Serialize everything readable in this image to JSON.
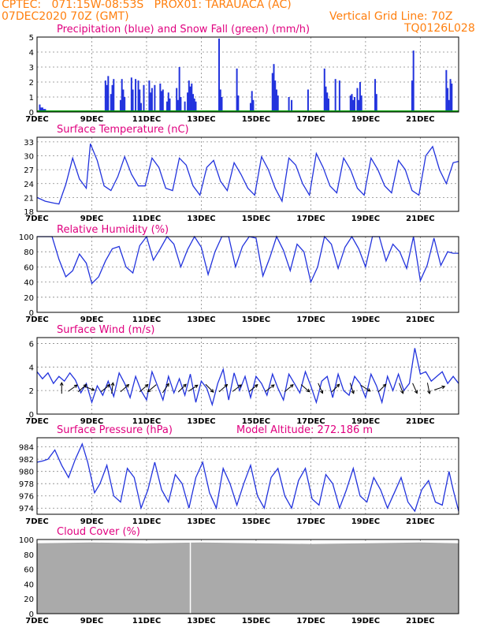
{
  "header": {
    "line1_left": "CPTEC:   071:15W-08:53S   PROX01: TARAUACA (AC)",
    "line2_left": "07DEC2020 70Z (GMT)",
    "line2_right": "Vertical Grid Line: 70Z",
    "line3_right": "TQ0126L028"
  },
  "colors": {
    "header": "#ff7f0e",
    "title": "#e0007f",
    "line": "#2233dd",
    "snow": "#00a000",
    "cloud": "#aaaaaa",
    "arrow": "#000000"
  },
  "x_axis": {
    "ticks": [
      {
        "label": "7DEC",
        "day": 7
      },
      {
        "label": "9DEC",
        "day": 9
      },
      {
        "label": "11DEC",
        "day": 11
      },
      {
        "label": "13DEC",
        "day": 13
      },
      {
        "label": "15DEC",
        "day": 15
      },
      {
        "label": "17DEC",
        "day": 17
      },
      {
        "label": "19DEC",
        "day": 19
      },
      {
        "label": "21DEC",
        "day": 21
      }
    ],
    "range": [
      7,
      22.4
    ]
  },
  "chart_data": [
    {
      "id": "precip",
      "type": "bar",
      "title": "Precipitation (blue) and Snow Fall (green) (mm/h)",
      "ylim": [
        0,
        5
      ],
      "yticks": [
        0,
        1,
        2,
        3,
        4,
        5
      ],
      "series": [
        {
          "name": "Precipitation",
          "x": [
            7.1,
            7.15,
            7.2,
            7.25,
            7.3,
            9.5,
            9.55,
            9.6,
            9.7,
            9.75,
            9.8,
            10.05,
            10.1,
            10.15,
            10.2,
            10.45,
            10.5,
            10.6,
            10.7,
            10.75,
            10.8,
            10.9,
            11.1,
            11.15,
            11.2,
            11.3,
            11.5,
            11.55,
            11.6,
            11.75,
            11.8,
            11.85,
            12.1,
            12.15,
            12.2,
            12.25,
            12.4,
            12.5,
            12.55,
            12.6,
            12.65,
            12.7,
            12.75,
            12.8,
            13.65,
            13.7,
            13.75,
            14.3,
            14.35,
            14.8,
            14.85,
            14.9,
            15.6,
            15.65,
            15.7,
            15.75,
            15.8,
            16.2,
            16.3,
            16.9,
            17.5,
            17.55,
            17.6,
            17.65,
            17.9,
            18.05,
            18.45,
            18.5,
            18.55,
            18.6,
            18.7,
            18.75,
            18.8,
            18.85,
            19.35,
            19.4,
            20.7,
            20.75,
            21.95,
            22.0,
            22.05,
            22.1,
            22.15
          ],
          "values": [
            0.5,
            0.3,
            0.3,
            0.2,
            0.2,
            2.1,
            1.8,
            2.4,
            1.2,
            1.8,
            2.2,
            0.8,
            2.2,
            1.5,
            1.0,
            2.3,
            1.5,
            2.2,
            2.1,
            1.5,
            0.6,
            1.8,
            2.1,
            1.3,
            1.6,
            1.8,
            1.9,
            1.4,
            1.5,
            0.7,
            1.3,
            0.9,
            1.6,
            0.8,
            3.0,
            1.0,
            0.7,
            1.3,
            2.1,
            1.7,
            1.9,
            1.2,
            0.9,
            0.7,
            4.9,
            1.5,
            1.0,
            2.9,
            1.1,
            0.6,
            1.4,
            0.8,
            2.6,
            3.2,
            2.1,
            1.5,
            1.1,
            1.0,
            0.8,
            1.5,
            2.9,
            1.7,
            1.3,
            0.9,
            2.2,
            2.1,
            1.1,
            1.2,
            0.8,
            1.0,
            1.6,
            0.8,
            2.0,
            1.1,
            2.2,
            1.2,
            2.1,
            4.1,
            2.8,
            1.6,
            0.8,
            2.2,
            1.9
          ]
        },
        {
          "name": "Snow Fall",
          "values": [
            0
          ]
        }
      ]
    },
    {
      "id": "temp",
      "type": "line",
      "title": "Surface Temperature (nC)",
      "ylim": [
        18,
        34
      ],
      "yticks": [
        18,
        21,
        24,
        27,
        30,
        33
      ],
      "series": [
        {
          "name": "Temperature",
          "x": [
            7.0,
            7.3,
            7.6,
            7.8,
            8.05,
            8.3,
            8.55,
            8.8,
            8.95,
            9.2,
            9.45,
            9.7,
            9.95,
            10.2,
            10.45,
            10.7,
            10.95,
            11.2,
            11.45,
            11.7,
            11.95,
            12.2,
            12.45,
            12.7,
            12.95,
            13.2,
            13.45,
            13.7,
            13.95,
            14.2,
            14.45,
            14.7,
            14.95,
            15.2,
            15.45,
            15.7,
            15.95,
            16.2,
            16.45,
            16.7,
            16.95,
            17.2,
            17.45,
            17.7,
            17.95,
            18.2,
            18.45,
            18.7,
            18.95,
            19.2,
            19.45,
            19.7,
            19.95,
            20.2,
            20.45,
            20.7,
            20.95,
            21.2,
            21.45,
            21.7,
            21.95,
            22.2,
            22.4
          ],
          "values": [
            21,
            20.2,
            19.8,
            19.6,
            23.8,
            29.5,
            25,
            23,
            32.6,
            29,
            23.5,
            22.5,
            25.5,
            29.8,
            26,
            23.5,
            23.5,
            29.5,
            27.5,
            23,
            22.5,
            29.5,
            28,
            23.5,
            21.5,
            27.5,
            29,
            24.5,
            22.5,
            28.5,
            26,
            23,
            21.5,
            29.8,
            27,
            23,
            20.2,
            29.5,
            28,
            24,
            21.5,
            30.5,
            27.5,
            23.5,
            22,
            29.5,
            27,
            23,
            21.5,
            29.5,
            27,
            23.5,
            22,
            29,
            27,
            22.5,
            21.5,
            30,
            32,
            27,
            24,
            28.5,
            28.8
          ]
        }
      ]
    },
    {
      "id": "rh",
      "type": "line",
      "title": "Relative Humidity (%)",
      "ylim": [
        0,
        100
      ],
      "yticks": [
        0,
        20,
        40,
        60,
        80,
        100
      ],
      "series": [
        {
          "name": "Relative Humidity",
          "x": [
            7.0,
            7.3,
            7.55,
            7.8,
            8.05,
            8.3,
            8.55,
            8.8,
            9.0,
            9.25,
            9.5,
            9.75,
            10.0,
            10.25,
            10.5,
            10.75,
            11.0,
            11.25,
            11.5,
            11.75,
            12.0,
            12.25,
            12.5,
            12.75,
            13.0,
            13.25,
            13.5,
            13.75,
            14.0,
            14.25,
            14.5,
            14.75,
            15.0,
            15.25,
            15.5,
            15.75,
            16.0,
            16.25,
            16.5,
            16.75,
            17.0,
            17.25,
            17.5,
            17.75,
            18.0,
            18.25,
            18.5,
            18.75,
            19.0,
            19.25,
            19.5,
            19.75,
            20.0,
            20.25,
            20.5,
            20.75,
            21.0,
            21.25,
            21.5,
            21.75,
            22.0,
            22.2,
            22.4
          ],
          "values": [
            100,
            100,
            100,
            70,
            47,
            55,
            77,
            65,
            38,
            47,
            68,
            84,
            87,
            60,
            52,
            88,
            100,
            69,
            84,
            100,
            90,
            60,
            83,
            100,
            86,
            50,
            80,
            100,
            100,
            60,
            87,
            100,
            98,
            48,
            72,
            100,
            82,
            55,
            90,
            80,
            40,
            60,
            100,
            90,
            58,
            86,
            100,
            84,
            60,
            100,
            100,
            68,
            90,
            80,
            58,
            100,
            42,
            62,
            98,
            62,
            80,
            78,
            78
          ]
        }
      ]
    },
    {
      "id": "wind",
      "type": "line",
      "title": "Surface Wind (m/s)",
      "ylim": [
        0,
        6.5
      ],
      "yticks": [
        0,
        2,
        4,
        6
      ],
      "series": [
        {
          "name": "Wind Speed",
          "x": [
            7.0,
            7.2,
            7.4,
            7.6,
            7.8,
            8.0,
            8.2,
            8.4,
            8.6,
            8.8,
            9.0,
            9.2,
            9.4,
            9.6,
            9.8,
            10.0,
            10.2,
            10.4,
            10.6,
            10.8,
            11.0,
            11.2,
            11.4,
            11.6,
            11.8,
            12.0,
            12.2,
            12.4,
            12.6,
            12.8,
            13.0,
            13.2,
            13.4,
            13.6,
            13.8,
            14.0,
            14.2,
            14.4,
            14.6,
            14.8,
            15.0,
            15.2,
            15.4,
            15.6,
            15.8,
            16.0,
            16.2,
            16.4,
            16.6,
            16.8,
            17.0,
            17.2,
            17.4,
            17.6,
            17.8,
            18.0,
            18.2,
            18.4,
            18.6,
            18.8,
            19.0,
            19.2,
            19.4,
            19.6,
            19.8,
            20.0,
            20.2,
            20.4,
            20.6,
            20.8,
            21.0,
            21.2,
            21.4,
            21.6,
            21.8,
            22.0,
            22.2,
            22.4
          ],
          "values": [
            3.6,
            3.0,
            3.5,
            2.6,
            3.2,
            2.8,
            3.5,
            2.9,
            1.8,
            2.6,
            1.0,
            2.4,
            1.6,
            2.8,
            1.5,
            3.5,
            2.6,
            1.4,
            3.2,
            2.0,
            1.2,
            3.6,
            2.4,
            1.2,
            3.2,
            1.8,
            3.0,
            1.6,
            3.4,
            1.0,
            2.8,
            2.2,
            0.8,
            2.6,
            3.8,
            1.2,
            3.5,
            2.0,
            3.2,
            1.4,
            3.2,
            2.6,
            1.6,
            3.4,
            2.2,
            1.2,
            3.4,
            2.6,
            1.8,
            3.6,
            2.4,
            1.0,
            2.8,
            3.2,
            1.4,
            3.4,
            2.0,
            1.6,
            3.2,
            2.6,
            1.4,
            3.4,
            2.4,
            1.0,
            3.2,
            2.0,
            3.4,
            2.0,
            2.6,
            5.6,
            3.4,
            3.6,
            2.8,
            3.2,
            3.6,
            2.6,
            3.2,
            2.6
          ]
        }
      ],
      "arrows": [
        {
          "day": 7.9,
          "u": 0,
          "v": 1
        },
        {
          "day": 8.3,
          "u": 0.7,
          "v": 0.5
        },
        {
          "day": 8.65,
          "u": 0.7,
          "v": 0.6
        },
        {
          "day": 8.9,
          "u": 0.8,
          "v": -0.3
        },
        {
          "day": 9.5,
          "u": 0.6,
          "v": 0.5
        },
        {
          "day": 9.75,
          "u": 0.1,
          "v": 0.8
        },
        {
          "day": 10.2,
          "u": 0.8,
          "v": 0.7
        },
        {
          "day": 10.9,
          "u": 0.9,
          "v": 0.8
        },
        {
          "day": 11.2,
          "u": -0.6,
          "v": -0.5
        },
        {
          "day": 11.7,
          "u": 0.4,
          "v": 0.6
        },
        {
          "day": 12.3,
          "u": 0.3,
          "v": 0.3
        },
        {
          "day": 12.7,
          "u": 0.9,
          "v": 0.6
        },
        {
          "day": 13.3,
          "u": 0.6,
          "v": -0.6
        },
        {
          "day": 13.8,
          "u": 0.9,
          "v": 0.8
        },
        {
          "day": 14.3,
          "u": 0.8,
          "v": 0.6
        },
        {
          "day": 14.9,
          "u": 1.2,
          "v": 1.0
        },
        {
          "day": 15.5,
          "u": 0.8,
          "v": 0.6
        },
        {
          "day": 16.2,
          "u": 0.6,
          "v": 0.5
        },
        {
          "day": 16.8,
          "u": 0.7,
          "v": -0.6
        },
        {
          "day": 17.35,
          "u": 0.4,
          "v": -0.9
        },
        {
          "day": 17.9,
          "u": 0.5,
          "v": 0.5
        },
        {
          "day": 18.5,
          "u": 0.3,
          "v": -0.9
        },
        {
          "day": 19.0,
          "u": 0.8,
          "v": -0.5
        },
        {
          "day": 19.6,
          "u": 0.6,
          "v": 0.6
        },
        {
          "day": 20.3,
          "u": 0.3,
          "v": -0.8
        },
        {
          "day": 20.8,
          "u": 0.4,
          "v": -0.9
        },
        {
          "day": 21.3,
          "u": 0.2,
          "v": -1.0
        },
        {
          "day": 21.7,
          "u": 0.6,
          "v": 0.2
        }
      ]
    },
    {
      "id": "pres",
      "type": "line",
      "title": "Surface Pressure (hPa)",
      "annotation": "Model Altitude: 272.186 m",
      "ylim": [
        973,
        985.5
      ],
      "yticks": [
        974,
        976,
        978,
        980,
        982,
        984
      ],
      "series": [
        {
          "name": "Pressure",
          "x": [
            7.0,
            7.2,
            7.4,
            7.65,
            7.9,
            8.15,
            8.4,
            8.65,
            8.85,
            9.1,
            9.3,
            9.55,
            9.8,
            10.05,
            10.3,
            10.55,
            10.8,
            11.05,
            11.3,
            11.55,
            11.8,
            12.05,
            12.3,
            12.55,
            12.8,
            13.05,
            13.3,
            13.55,
            13.8,
            14.05,
            14.3,
            14.55,
            14.8,
            15.05,
            15.3,
            15.55,
            15.8,
            16.05,
            16.3,
            16.55,
            16.8,
            17.05,
            17.3,
            17.55,
            17.8,
            18.05,
            18.3,
            18.55,
            18.8,
            19.05,
            19.3,
            19.55,
            19.8,
            20.05,
            20.3,
            20.55,
            20.8,
            21.05,
            21.3,
            21.55,
            21.8,
            22.05,
            22.2,
            22.4
          ],
          "values": [
            981.5,
            981.7,
            982.0,
            983.5,
            981.0,
            979.0,
            982.0,
            984.5,
            981.5,
            976.5,
            978.0,
            981.0,
            976.0,
            975.0,
            980.5,
            979.0,
            974.0,
            977.0,
            981.5,
            977.0,
            975.0,
            979.5,
            978.0,
            974.0,
            979.0,
            981.5,
            976.5,
            974.0,
            980.5,
            978.0,
            974.5,
            978.0,
            981.0,
            976.0,
            974.0,
            979.0,
            980.5,
            976.0,
            974.0,
            978.5,
            980.5,
            975.5,
            974.5,
            979.5,
            978.0,
            974.0,
            977.0,
            980.5,
            976.0,
            975.0,
            979.0,
            977.0,
            974.0,
            976.5,
            979.0,
            975.0,
            973.5,
            977.0,
            978.5,
            975.0,
            974.5,
            980.0,
            977.0,
            973.5
          ]
        }
      ]
    },
    {
      "id": "cloud",
      "type": "area",
      "title": "Cloud Cover (%)",
      "ylim": [
        0,
        100
      ],
      "yticks": [
        0,
        20,
        40,
        60,
        80,
        100
      ],
      "series": [
        {
          "name": "Cloud Cover",
          "x": [
            7.0,
            9.0,
            11.0,
            13.0,
            15.0,
            17.0,
            19.0,
            21.0,
            22.4
          ],
          "values": [
            95,
            96,
            95,
            96,
            95,
            94,
            95,
            96,
            95
          ]
        }
      ]
    }
  ]
}
